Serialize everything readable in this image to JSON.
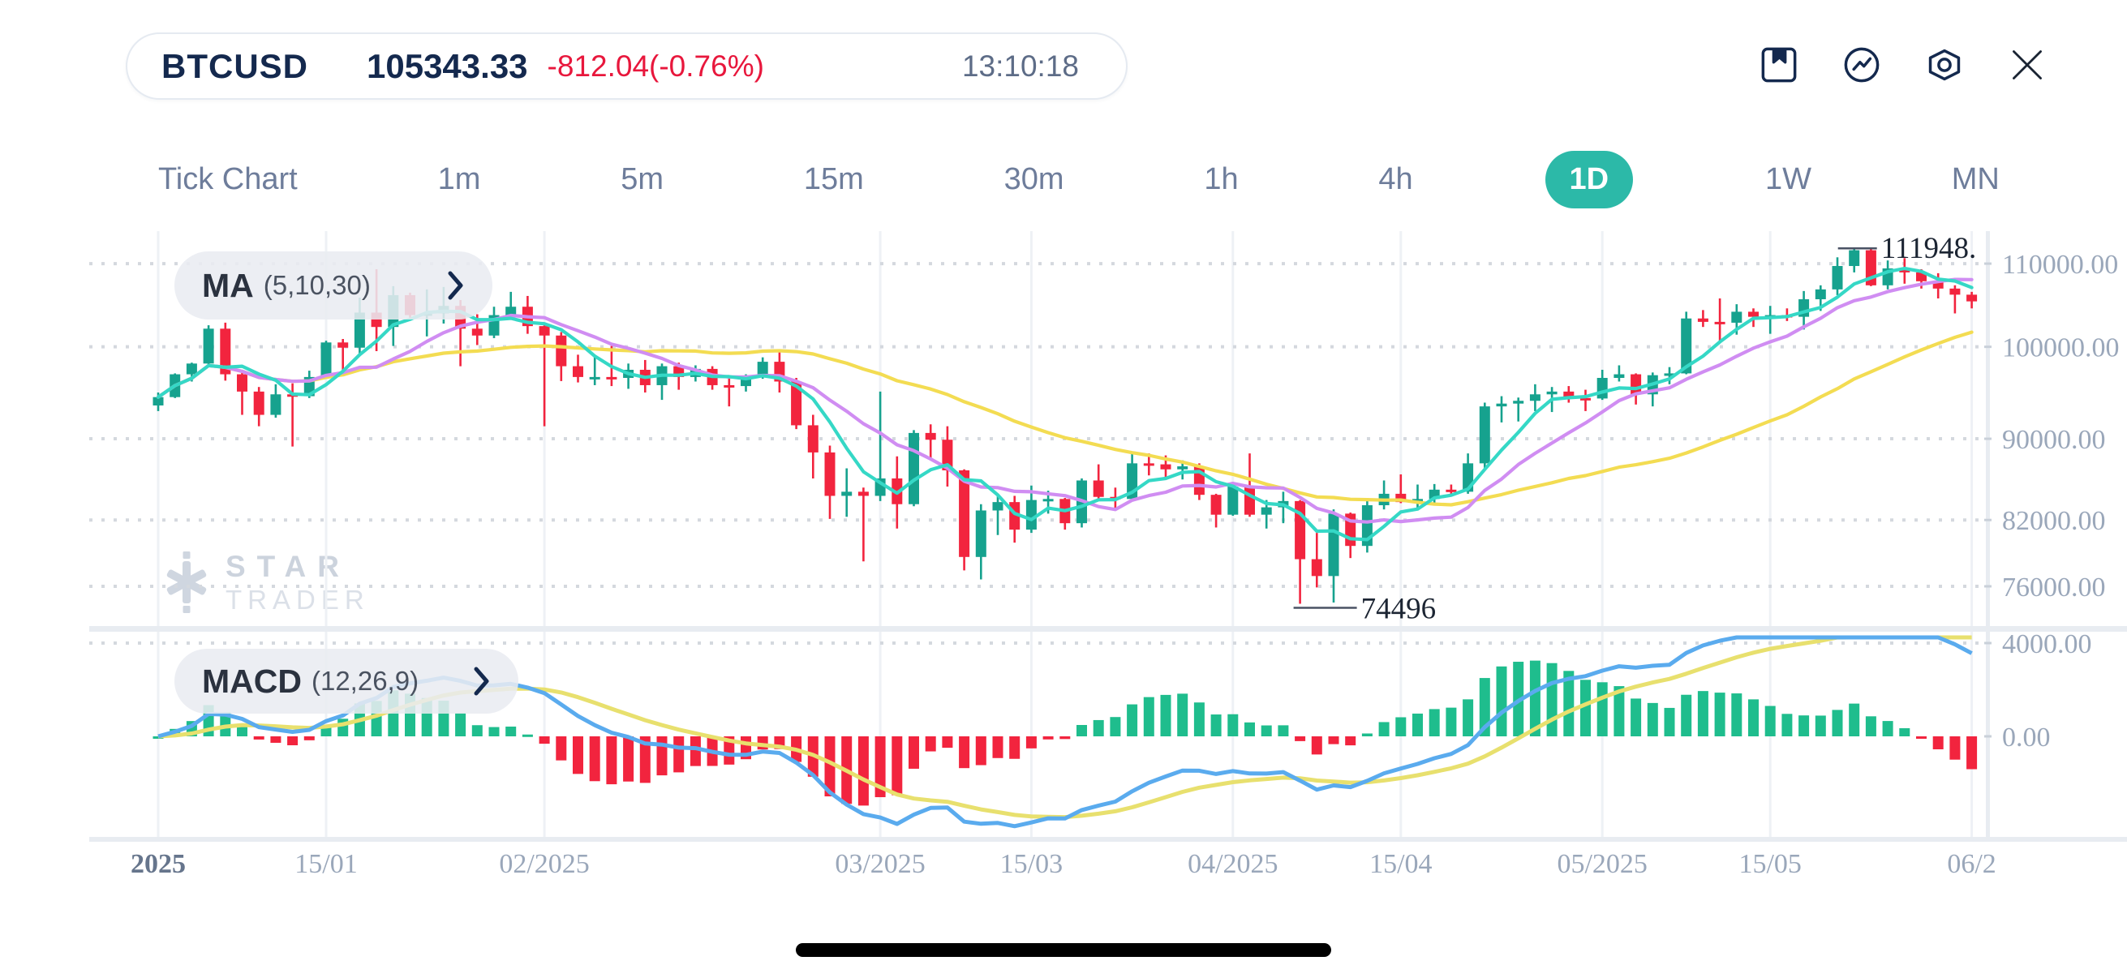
{
  "header": {
    "symbol": "BTCUSD",
    "price": "105343.33",
    "change": "-812.04(-0.76%)",
    "time": "13:10:18"
  },
  "toolbar": {
    "icons": [
      "bookmark-icon",
      "trend-circle-icon",
      "settings-hexagon-icon",
      "close-icon"
    ]
  },
  "timeframes": {
    "items": [
      "Tick Chart",
      "1m",
      "5m",
      "15m",
      "30m",
      "1h",
      "4h",
      "1D",
      "1W",
      "MN"
    ],
    "active": "1D"
  },
  "indicators": {
    "ma": {
      "name": "MA",
      "params": "(5,10,30)"
    },
    "macd": {
      "name": "MACD",
      "params": "(12,26,9)"
    }
  },
  "watermark": {
    "line1": "STAR",
    "line2": "TRADER"
  },
  "annotations": {
    "high": {
      "text": "111948.",
      "candle_index": 101
    },
    "low": {
      "text": "74496",
      "candle_index": 68
    }
  },
  "colors": {
    "accent_teal": "#2cb9a8",
    "navy": "#14294e",
    "change_red": "#e8173c",
    "candle_up": "#16a28e",
    "candle_down": "#f2243e",
    "ma5": "#35d8c6",
    "ma10": "#d08df2",
    "ma30": "#f3dc52",
    "macd_dif": "#5aabee",
    "macd_dea": "#e8e06e",
    "hist_up": "#1fbd8d",
    "hist_down": "#f2243e",
    "axis_text": "#9aa7ba",
    "grid_dot": "#d4d8de",
    "grid_line": "#eef1f5",
    "divider": "#e8ecf1"
  },
  "chart_data": {
    "type": "candlestick",
    "title": "BTCUSD 1D with MA(5,10,30) and MACD(12,26,9)",
    "yscale": "log",
    "ylim": [
      74000,
      113000
    ],
    "legend_position": "top-left",
    "grid": "dotted-horizontal",
    "price_ticks": [
      {
        "value": 110000,
        "label": "110000.00"
      },
      {
        "value": 100000,
        "label": "100000.00"
      },
      {
        "value": 90000,
        "label": "90000.00"
      },
      {
        "value": 82000,
        "label": "82000.00"
      },
      {
        "value": 76000,
        "label": "76000.00"
      }
    ],
    "macd_ticks": [
      {
        "value": 4000,
        "label": "4000.00",
        "dotted": true
      },
      {
        "value": 0,
        "label": "0.00",
        "dotted": false
      }
    ],
    "x_labels": [
      {
        "text": "2025",
        "index": 0,
        "bold": true
      },
      {
        "text": "15/01",
        "index": 10
      },
      {
        "text": "02/2025",
        "index": 23
      },
      {
        "text": "03/2025",
        "index": 43
      },
      {
        "text": "15/03",
        "index": 52
      },
      {
        "text": "04/2025",
        "index": 64
      },
      {
        "text": "15/04",
        "index": 74
      },
      {
        "text": "05/2025",
        "index": 86
      },
      {
        "text": "15/05",
        "index": 96
      },
      {
        "text": "06/2",
        "index": 108
      }
    ],
    "ma_periods": [
      5,
      10,
      30
    ],
    "macd_params": [
      12,
      26,
      9
    ],
    "candles": [
      [
        "01-01",
        93500,
        94900,
        92900,
        94400
      ],
      [
        "01-02",
        94400,
        97000,
        94300,
        96900
      ],
      [
        "01-03",
        96900,
        98200,
        96100,
        98100
      ],
      [
        "01-06",
        98100,
        102500,
        97800,
        102100
      ],
      [
        "01-07",
        102100,
        102800,
        96200,
        96900
      ],
      [
        "01-08",
        96900,
        97300,
        92500,
        95000
      ],
      [
        "01-09",
        95000,
        95500,
        91300,
        92500
      ],
      [
        "01-10",
        92500,
        95800,
        92200,
        94700
      ],
      [
        "01-13",
        94700,
        95900,
        89200,
        94500
      ],
      [
        "01-14",
        94500,
        97300,
        94300,
        96600
      ],
      [
        "01-15",
        96600,
        100700,
        96500,
        100500
      ],
      [
        "01-16",
        100500,
        100900,
        97300,
        99900
      ],
      [
        "01-17",
        99900,
        105800,
        99100,
        104000
      ],
      [
        "01-20",
        104000,
        109300,
        99500,
        102300
      ],
      [
        "01-21",
        102300,
        107200,
        100100,
        106100
      ],
      [
        "01-22",
        106100,
        106400,
        103400,
        103700
      ],
      [
        "01-23",
        103700,
        106800,
        101200,
        103900
      ],
      [
        "01-24",
        103900,
        107100,
        102700,
        104800
      ],
      [
        "01-27",
        104800,
        105500,
        97800,
        102100
      ],
      [
        "01-28",
        102100,
        103800,
        100200,
        101300
      ],
      [
        "01-29",
        101300,
        104700,
        101000,
        103700
      ],
      [
        "01-30",
        103700,
        106500,
        103200,
        104700
      ],
      [
        "01-31",
        104700,
        106000,
        101500,
        102400
      ],
      [
        "02-03",
        102400,
        102500,
        91300,
        101300
      ],
      [
        "02-04",
        101300,
        101700,
        96150,
        97800
      ],
      [
        "02-05",
        97800,
        99100,
        96000,
        96600
      ],
      [
        "02-06",
        96600,
        99000,
        95700,
        96600
      ],
      [
        "02-07",
        96600,
        100100,
        95600,
        96500
      ],
      [
        "02-10",
        96500,
        98100,
        95300,
        97400
      ],
      [
        "02-11",
        97400,
        98500,
        94900,
        95700
      ],
      [
        "02-12",
        95700,
        98100,
        94100,
        97800
      ],
      [
        "02-13",
        97800,
        98200,
        95200,
        96600
      ],
      [
        "02-14",
        96600,
        97900,
        96100,
        97500
      ],
      [
        "02-17",
        97500,
        97800,
        95200,
        95700
      ],
      [
        "02-18",
        95700,
        96700,
        93400,
        95600
      ],
      [
        "02-19",
        95600,
        96900,
        95000,
        96600
      ],
      [
        "02-20",
        96600,
        98800,
        96400,
        98300
      ],
      [
        "02-21",
        98300,
        99400,
        94900,
        96100
      ],
      [
        "02-24",
        96100,
        96500,
        91000,
        91400
      ],
      [
        "02-25",
        91400,
        92500,
        86000,
        88600
      ],
      [
        "02-26",
        88600,
        89300,
        82100,
        84300
      ],
      [
        "02-27",
        84300,
        87000,
        82300,
        84700
      ],
      [
        "02-28",
        84700,
        85100,
        78200,
        84300
      ],
      [
        "03-03",
        84300,
        95000,
        83800,
        86000
      ],
      [
        "03-04",
        86000,
        88200,
        81200,
        83500
      ],
      [
        "03-05",
        83500,
        90900,
        83300,
        90600
      ],
      [
        "03-06",
        90600,
        91500,
        87900,
        89900
      ],
      [
        "03-07",
        89900,
        91300,
        85200,
        86800
      ],
      [
        "03-10",
        86800,
        86900,
        77400,
        78600
      ],
      [
        "03-11",
        78600,
        83500,
        76600,
        82900
      ],
      [
        "03-12",
        82900,
        84400,
        80600,
        83700
      ],
      [
        "03-13",
        83700,
        84300,
        79900,
        81100
      ],
      [
        "03-14",
        81100,
        85300,
        80800,
        83900
      ],
      [
        "03-17",
        83900,
        84800,
        82600,
        84000
      ],
      [
        "03-18",
        84000,
        84100,
        81100,
        81700
      ],
      [
        "03-19",
        81700,
        86000,
        81300,
        85800
      ],
      [
        "03-20",
        85800,
        87400,
        83900,
        84200
      ],
      [
        "03-21",
        84200,
        85100,
        83100,
        84000
      ],
      [
        "03-24",
        84000,
        88500,
        83800,
        87500
      ],
      [
        "03-25",
        87500,
        88500,
        86300,
        87400
      ],
      [
        "03-26",
        87400,
        88300,
        85900,
        86900
      ],
      [
        "03-27",
        86900,
        87800,
        85900,
        87200
      ],
      [
        "03-28",
        87200,
        87500,
        83900,
        84400
      ],
      [
        "03-31",
        84400,
        84500,
        81300,
        82500
      ],
      [
        "04-01",
        82500,
        85500,
        82400,
        85200
      ],
      [
        "04-02",
        85200,
        88500,
        82300,
        82500
      ],
      [
        "04-03",
        82500,
        83900,
        81200,
        83200
      ],
      [
        "04-04",
        83200,
        84700,
        81700,
        83800
      ],
      [
        "04-07",
        83800,
        83900,
        74496,
        78400
      ],
      [
        "04-08",
        78400,
        80800,
        75900,
        76900
      ],
      [
        "04-09",
        76900,
        83000,
        74600,
        82600
      ],
      [
        "04-10",
        82600,
        82700,
        78500,
        79600
      ],
      [
        "04-11",
        79600,
        84000,
        79000,
        83400
      ],
      [
        "04-14",
        83400,
        85800,
        83000,
        84500
      ],
      [
        "04-15",
        84500,
        86400,
        83600,
        83700
      ],
      [
        "04-16",
        83700,
        85400,
        83100,
        84000
      ],
      [
        "04-17",
        84000,
        85450,
        83500,
        84900
      ],
      [
        "04-18",
        84900,
        85400,
        84300,
        84700
      ],
      [
        "04-21",
        84700,
        88500,
        84500,
        87500
      ],
      [
        "04-22",
        87500,
        93800,
        87000,
        93400
      ],
      [
        "04-23",
        93400,
        94500,
        91700,
        93700
      ],
      [
        "04-24",
        93700,
        94350,
        91800,
        94000
      ],
      [
        "04-25",
        94000,
        95800,
        92900,
        94700
      ],
      [
        "04-28",
        94700,
        95500,
        92800,
        95000
      ],
      [
        "04-29",
        95000,
        95600,
        93800,
        94300
      ],
      [
        "04-30",
        94300,
        95200,
        92900,
        94250
      ],
      [
        "05-01",
        94250,
        97400,
        94100,
        96500
      ],
      [
        "05-02",
        96500,
        97900,
        96100,
        96900
      ],
      [
        "05-05",
        96900,
        97000,
        93600,
        94700
      ],
      [
        "05-06",
        94700,
        97100,
        93400,
        96800
      ],
      [
        "05-07",
        96800,
        97700,
        95800,
        97000
      ],
      [
        "05-08",
        97000,
        104100,
        96900,
        103300
      ],
      [
        "05-09",
        103300,
        104300,
        102300,
        102900
      ],
      [
        "05-12",
        102900,
        105700,
        100700,
        102800
      ],
      [
        "05-13",
        102800,
        105000,
        101400,
        104100
      ],
      [
        "05-14",
        104100,
        104500,
        102300,
        103500
      ],
      [
        "05-15",
        103500,
        104800,
        101500,
        103700
      ],
      [
        "05-16",
        103700,
        104500,
        103000,
        103500
      ],
      [
        "05-19",
        103500,
        106600,
        102000,
        105600
      ],
      [
        "05-20",
        105600,
        107300,
        104200,
        106800
      ],
      [
        "05-21",
        106800,
        110800,
        106100,
        109700
      ],
      [
        "05-22",
        109700,
        111948,
        108900,
        111700
      ],
      [
        "05-23",
        111700,
        111900,
        107200,
        107300
      ],
      [
        "05-26",
        107300,
        110400,
        106800,
        109400
      ],
      [
        "05-27",
        109400,
        110700,
        107500,
        108900
      ],
      [
        "05-28",
        108900,
        109300,
        106900,
        107800
      ],
      [
        "05-29",
        107800,
        108800,
        105700,
        106900
      ],
      [
        "05-30",
        106900,
        107300,
        103900,
        106155
      ],
      [
        "06-02",
        106155,
        106500,
        104500,
        105343
      ]
    ]
  }
}
